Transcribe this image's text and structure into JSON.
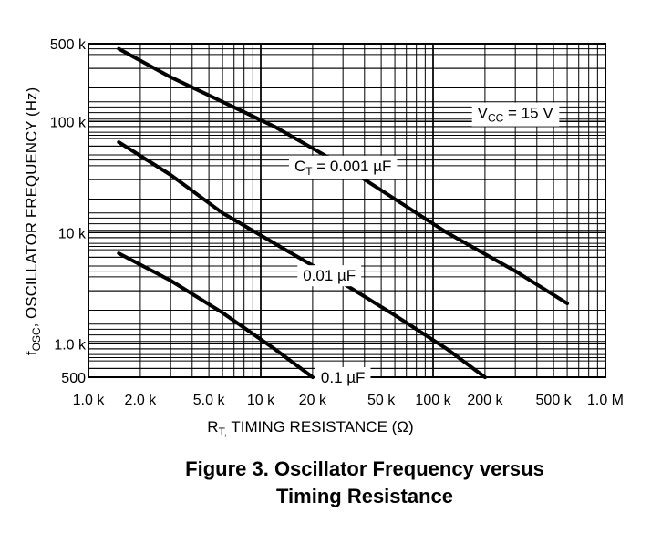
{
  "chart_data": {
    "type": "line",
    "title": "Figure 3. Oscillator Frequency versus Timing Resistance",
    "title_lines": [
      "Figure 3. Oscillator Frequency versus",
      "Timing Resistance"
    ],
    "xscale": "log",
    "yscale": "log",
    "xlim": [
      1000,
      1000000
    ],
    "ylim": [
      500,
      500000
    ],
    "xlabel": {
      "main": "R",
      "sub": "T,",
      "rest": " TIMING RESISTANCE (Ω)"
    },
    "ylabel": {
      "main": "f",
      "sub": "OSC",
      "rest": ", OSCILLATOR FREQUENCY (Hz)"
    },
    "xticks": [
      {
        "value": 1000,
        "label": "1.0 k"
      },
      {
        "value": 2000,
        "label": "2.0 k"
      },
      {
        "value": 5000,
        "label": "5.0 k"
      },
      {
        "value": 10000,
        "label": "10 k"
      },
      {
        "value": 20000,
        "label": "20 k"
      },
      {
        "value": 50000,
        "label": "50 k"
      },
      {
        "value": 100000,
        "label": "100 k"
      },
      {
        "value": 200000,
        "label": "200 k"
      },
      {
        "value": 500000,
        "label": "500 k"
      },
      {
        "value": 1000000,
        "label": "1.0 M"
      }
    ],
    "yticks": [
      {
        "value": 500,
        "label": "500"
      },
      {
        "value": 1000,
        "label": "1.0 k"
      },
      {
        "value": 10000,
        "label": "10 k"
      },
      {
        "value": 100000,
        "label": "100 k"
      },
      {
        "value": 500000,
        "label": "500 k"
      }
    ],
    "annotation": {
      "main": "V",
      "sub": "CC",
      "rest": " = 15 V"
    },
    "series": [
      {
        "name": "C_T = 0.001 µF",
        "label": {
          "main": "C",
          "sub": "T",
          "rest": " = 0.001 µF",
          "at_x": 30000
        },
        "x": [
          1500,
          3000,
          6000,
          12000,
          30000,
          60000,
          120000,
          300000,
          600000
        ],
        "y": [
          450000,
          250000,
          150000,
          90000,
          40000,
          20000,
          10000,
          4500,
          2300
        ]
      },
      {
        "name": "0.01 µF",
        "label": {
          "main": "0.01 µF",
          "at_x": 25000
        },
        "x": [
          1500,
          3000,
          6000,
          12000,
          30000,
          60000,
          120000,
          200000
        ],
        "y": [
          65000,
          33000,
          15000,
          8000,
          3500,
          1800,
          900,
          500
        ]
      },
      {
        "name": "0.1 µF",
        "label": {
          "main": "0.1 µF",
          "at_x": 30000
        },
        "x": [
          1500,
          3000,
          6000,
          12000,
          20000
        ],
        "y": [
          6500,
          3700,
          1900,
          900,
          500
        ]
      }
    ]
  }
}
